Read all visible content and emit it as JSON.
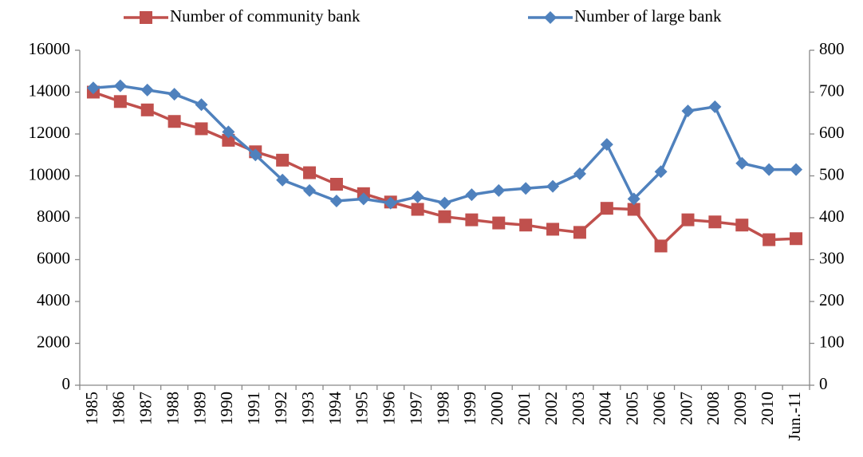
{
  "chart_data": {
    "type": "line",
    "categories": [
      "1985",
      "1986",
      "1987",
      "1988",
      "1989",
      "1990",
      "1991",
      "1992",
      "1993",
      "1994",
      "1995",
      "1996",
      "1997",
      "1998",
      "1999",
      "2000",
      "2001",
      "2002",
      "2003",
      "2004",
      "2005",
      "2006",
      "2007",
      "2008",
      "2009",
      "2010",
      "Jun.-11"
    ],
    "series": [
      {
        "name": "Number of community bank",
        "color": "#c0504d",
        "marker": "square",
        "values": [
          14000,
          13550,
          13150,
          12600,
          12250,
          11700,
          11150,
          10750,
          10150,
          9600,
          9150,
          8750,
          8400,
          8050,
          7900,
          7750,
          7650,
          7450,
          7300,
          8450,
          8400,
          6650,
          7900,
          7800,
          7650,
          6950,
          7000
        ]
      },
      {
        "name": "Number of large bank",
        "color": "#4f81bd",
        "marker": "diamond",
        "axis": "y2",
        "values": [
          710,
          715,
          705,
          695,
          670,
          605,
          550,
          490,
          465,
          440,
          445,
          435,
          450,
          435,
          455,
          465,
          470,
          475,
          505,
          575,
          445,
          510,
          655,
          665,
          530,
          515,
          515
        ]
      }
    ],
    "ylim": [
      0,
      16000
    ],
    "yticks": [
      0,
      2000,
      4000,
      6000,
      8000,
      10000,
      12000,
      14000,
      16000
    ],
    "y2lim": [
      0,
      800
    ],
    "y2ticks": [
      0,
      100,
      200,
      300,
      400,
      500,
      600,
      700,
      800
    ],
    "grid": false,
    "legend": "top"
  }
}
